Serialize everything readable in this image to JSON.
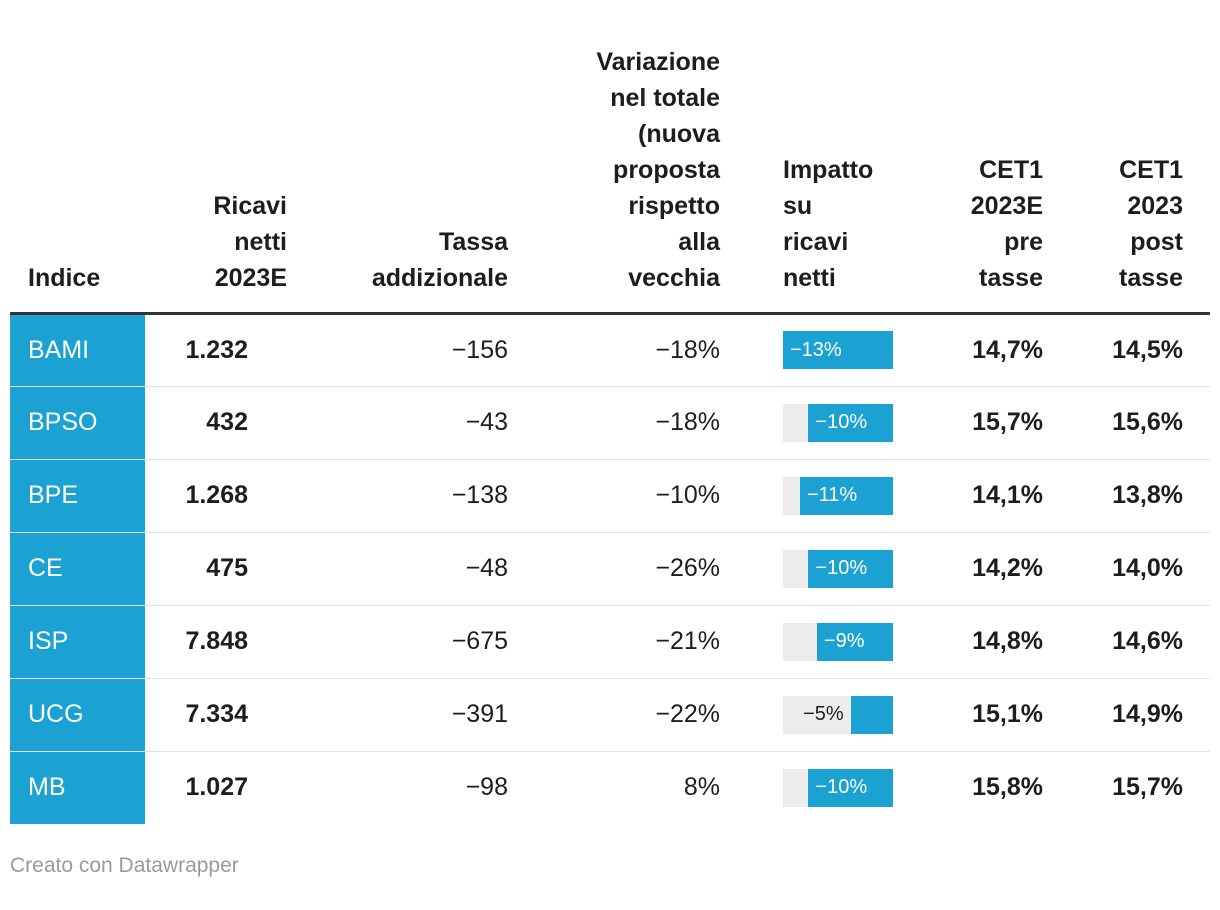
{
  "colors": {
    "accent_blue": "#1ba2d2",
    "bar_track_gray": "#ececec",
    "header_border": "#333333",
    "row_divider": "#e0e0e0",
    "body_text": "#1d1d1d",
    "footer_text": "#9a9a9a"
  },
  "table": {
    "columns": [
      {
        "id": "indice",
        "lines": [
          "Indice"
        ]
      },
      {
        "id": "ricavi",
        "lines": [
          "Ricavi",
          "netti",
          "2023E"
        ]
      },
      {
        "id": "tassa",
        "lines": [
          "Tassa",
          "addizionale"
        ]
      },
      {
        "id": "var",
        "lines": [
          "Variazione",
          "nel totale",
          "(nuova",
          "proposta",
          "rispetto",
          "alla",
          "vecchia"
        ]
      },
      {
        "id": "bar",
        "lines": [
          "Impatto",
          "su",
          "ricavi",
          "netti"
        ]
      },
      {
        "id": "pre",
        "lines": [
          "CET1",
          "2023E",
          "pre",
          "tasse"
        ]
      },
      {
        "id": "post",
        "lines": [
          "CET1",
          "2023",
          "post",
          "tasse"
        ]
      }
    ],
    "rows": [
      {
        "indice": "BAMI",
        "ricavi": "1.232",
        "tassa": "−156",
        "var": "−18%",
        "bar": {
          "label": "−13%",
          "pct": 100,
          "label_inside": true
        },
        "pre": "14,7%",
        "post": "14,5%"
      },
      {
        "indice": "BPSO",
        "ricavi": "432",
        "tassa": "−43",
        "var": "−18%",
        "bar": {
          "label": "−10%",
          "pct": 76.9,
          "label_inside": true
        },
        "pre": "15,7%",
        "post": "15,6%"
      },
      {
        "indice": "BPE",
        "ricavi": "1.268",
        "tassa": "−138",
        "var": "−10%",
        "bar": {
          "label": "−11%",
          "pct": 84.6,
          "label_inside": true
        },
        "pre": "14,1%",
        "post": "13,8%"
      },
      {
        "indice": "CE",
        "ricavi": "475",
        "tassa": "−48",
        "var": "−26%",
        "bar": {
          "label": "−10%",
          "pct": 76.9,
          "label_inside": true
        },
        "pre": "14,2%",
        "post": "14,0%"
      },
      {
        "indice": "ISP",
        "ricavi": "7.848",
        "tassa": "−675",
        "var": "−21%",
        "bar": {
          "label": "−9%",
          "pct": 69.2,
          "label_inside": true
        },
        "pre": "14,8%",
        "post": "14,6%"
      },
      {
        "indice": "UCG",
        "ricavi": "7.334",
        "tassa": "−391",
        "var": "−22%",
        "bar": {
          "label": "−5%",
          "pct": 38.5,
          "label_inside": false
        },
        "pre": "15,1%",
        "post": "14,9%"
      },
      {
        "indice": "MB",
        "ricavi": "1.027",
        "tassa": "−98",
        "var": "8%",
        "bar": {
          "label": "−10%",
          "pct": 76.9,
          "label_inside": true
        },
        "pre": "15,8%",
        "post": "15,7%"
      }
    ]
  },
  "footer": {
    "credit": "Creato con Datawrapper"
  },
  "chart_data": {
    "type": "table",
    "title": "",
    "columns": [
      "Indice",
      "Ricavi netti 2023E",
      "Tassa addizionale",
      "Variazione nel totale (nuova proposta rispetto alla vecchia)",
      "Impatto su ricavi netti",
      "CET1 2023E pre tasse",
      "CET1 2023 post tasse"
    ],
    "rows": [
      [
        "BAMI",
        1232,
        -156,
        "-18%",
        "-13%",
        "14,7%",
        "14,5%"
      ],
      [
        "BPSO",
        432,
        -43,
        "-18%",
        "-10%",
        "15,7%",
        "15,6%"
      ],
      [
        "BPE",
        1268,
        -138,
        "-10%",
        "-11%",
        "14,1%",
        "13,8%"
      ],
      [
        "CE",
        475,
        -48,
        "-26%",
        "-10%",
        "14,2%",
        "14,0%"
      ],
      [
        "ISP",
        7848,
        -675,
        "-21%",
        "-9%",
        "14,8%",
        "14,6%"
      ],
      [
        "UCG",
        7334,
        -391,
        "-22%",
        "-5%",
        "15,1%",
        "14,9%"
      ],
      [
        "MB",
        1027,
        -98,
        "8%",
        "-10%",
        "15,8%",
        "15,7%"
      ]
    ],
    "embedded_bar_column": {
      "name": "Impatto su ricavi netti",
      "type": "bar",
      "values": [
        -13,
        -10,
        -11,
        -10,
        -9,
        -5,
        -10
      ],
      "axis_max_abs": 13,
      "bar_color": "#1ba2d2",
      "bars_right_aligned": true
    },
    "legend_position": "none",
    "grid": "horizontal-row-dividers"
  }
}
